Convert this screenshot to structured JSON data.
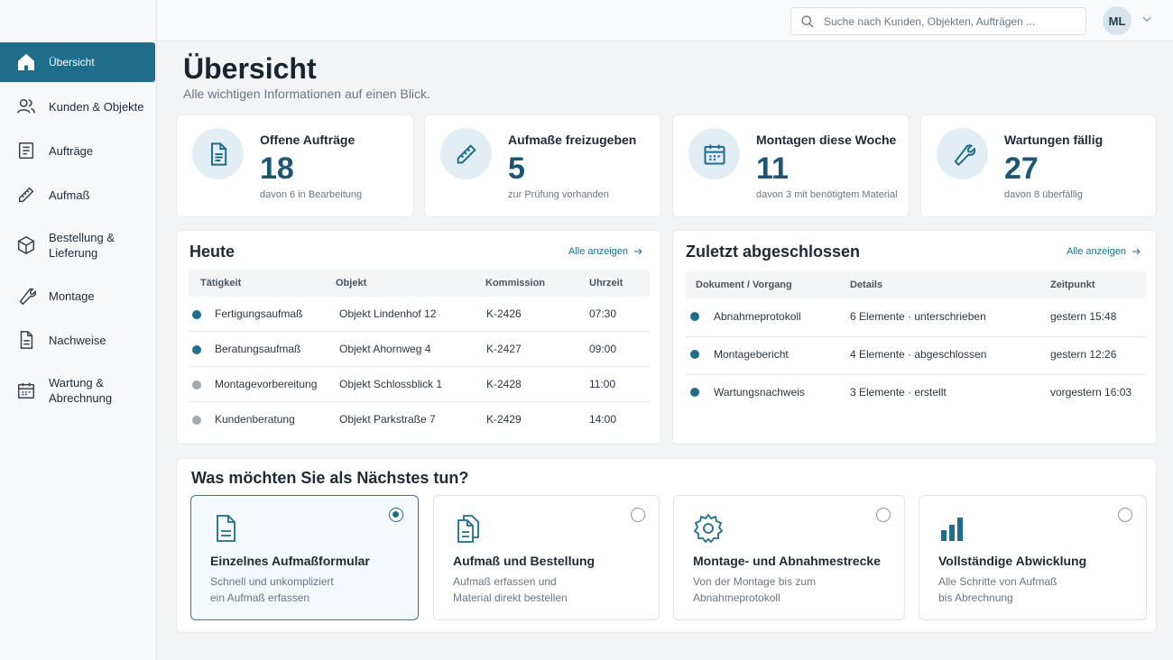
{
  "search": {
    "placeholder": "Suche nach Kunden, Objekten, Aufträgen ..."
  },
  "user": {
    "initials": "ML"
  },
  "sidebar": {
    "items": [
      {
        "label": "Übersicht",
        "icon": "home-icon",
        "active": true
      },
      {
        "label": "Kunden & Objekte",
        "icon": "users-icon"
      },
      {
        "label": "Aufträge",
        "icon": "document-list-icon"
      },
      {
        "label": "Aufmaß",
        "icon": "ruler-icon"
      },
      {
        "label": "Bestellung & Lieferung",
        "icon": "box-icon"
      },
      {
        "label": "Montage",
        "icon": "wrench-icon"
      },
      {
        "label": "Nachweise",
        "icon": "document-icon"
      },
      {
        "label": "Wartung & Abrechnung",
        "icon": "calendar-icon"
      }
    ]
  },
  "header": {
    "title": "Übersicht",
    "subtitle": "Alle wichtigen Informationen auf einen Blick."
  },
  "kpis": [
    {
      "title": "Offene Aufträge",
      "value": "18",
      "note": "davon 6 in Bearbeitung",
      "icon": "document-icon"
    },
    {
      "title": "Aufmaße freizugeben",
      "value": "5",
      "note": "zur Prüfung vorhanden",
      "icon": "ruler-icon"
    },
    {
      "title": "Montagen diese Woche",
      "value": "11",
      "note": "davon 3 mit benötigtem Material",
      "icon": "calendar-icon"
    },
    {
      "title": "Wartungen fällig",
      "value": "27",
      "note": "davon 8 überfällig",
      "icon": "wrench-icon"
    }
  ],
  "today": {
    "title": "Heute",
    "show_all": "Alle anzeigen",
    "columns": [
      "Tätigkeit",
      "Objekt",
      "Kommission",
      "Uhrzeit"
    ],
    "rows": [
      {
        "status_color": "#1d6d8b",
        "activity": "Fertigungsaufmaß",
        "object": "Objekt Lindenhof 12",
        "commission": "K-2426",
        "time": "07:30"
      },
      {
        "status_color": "#1d6d8b",
        "activity": "Beratungsaufmaß",
        "object": "Objekt Ahornweg 4",
        "commission": "K-2427",
        "time": "09:00"
      },
      {
        "status_color": "#a3a9ae",
        "activity": "Montagevorbereitung",
        "object": "Objekt Schlossblick 1",
        "commission": "K-2428",
        "time": "11:00"
      },
      {
        "status_color": "#a3a9ae",
        "activity": "Kundenberatung",
        "object": "Objekt Parkstraße 7",
        "commission": "K-2429",
        "time": "14:00"
      }
    ]
  },
  "completed": {
    "title": "Zuletzt abgeschlossen",
    "show_all": "Alle anzeigen",
    "columns": [
      "Dokument / Vorgang",
      "Details",
      "Zeitpunkt"
    ],
    "rows": [
      {
        "status_color": "#1d6d8b",
        "document": "Abnahmeprotokoll",
        "details": "6 Elemente · unterschrieben",
        "time": "gestern 15:48"
      },
      {
        "status_color": "#1d6d8b",
        "document": "Montagebericht",
        "details": "4 Elemente · abgeschlossen",
        "time": "gestern 12:26"
      },
      {
        "status_color": "#1d6d8b",
        "document": "Wartungsnachweis",
        "details": "3 Elemente · erstellt",
        "time": "vorgestern 16:03"
      }
    ]
  },
  "next_steps": {
    "title": "Was möchten Sie als Nächstes tun?",
    "options": [
      {
        "title": "Einzelnes Aufmaßformular",
        "desc_line1": "Schnell und unkompliziert",
        "desc_line2": "ein Aufmaß erfassen",
        "icon": "document-icon",
        "selected": true
      },
      {
        "title": "Aufmaß und Bestellung",
        "desc_line1": "Aufmaß erfassen und",
        "desc_line2": "Material direkt bestellen",
        "icon": "documents-icon",
        "selected": false
      },
      {
        "title": "Montage- und Abnahmestrecke",
        "desc_line1": "Von der Montage bis zum",
        "desc_line2": "Abnahmeprotokoll",
        "icon": "gear-icon",
        "selected": false
      },
      {
        "title": "Vollständige Abwicklung",
        "desc_line1": "Alle Schritte von Aufmaß",
        "desc_line2": "bis Abrechnung",
        "icon": "bar-chart-icon",
        "selected": false
      }
    ]
  },
  "colors": {
    "accent": "#1d6d8b",
    "kpi_value": "#1d5572",
    "status_active": "#1d6d8b",
    "status_pending": "#a3a9ae"
  }
}
